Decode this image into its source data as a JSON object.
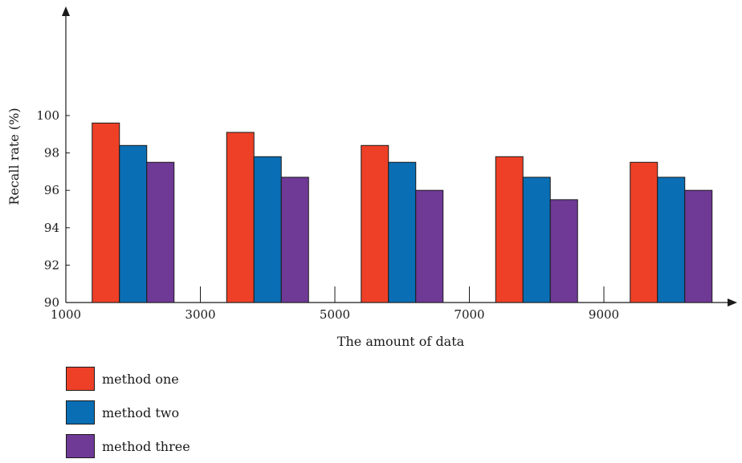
{
  "chart_data": {
    "type": "bar",
    "xlabel": "The amount of data",
    "ylabel": "Recall rate (%)",
    "x_ticks": [
      "1000",
      "3000",
      "5000",
      "7000",
      "9000"
    ],
    "y_ticks": [
      90,
      92,
      94,
      96,
      98,
      100
    ],
    "ylim": [
      90,
      100
    ],
    "categories": [
      "2000",
      "4000",
      "6000",
      "8000",
      "10000"
    ],
    "series": [
      {
        "name": "method one",
        "color": "#ee4027",
        "values": [
          99.6,
          99.1,
          98.4,
          97.8,
          97.5
        ]
      },
      {
        "name": "method two",
        "color": "#0a6eb4",
        "values": [
          98.4,
          97.8,
          97.5,
          96.7,
          96.7
        ]
      },
      {
        "name": "method three",
        "color": "#6f3996",
        "values": [
          97.5,
          96.7,
          96.0,
          95.5,
          96.0
        ]
      }
    ],
    "legend_position": "bottom-left",
    "grid": false
  }
}
